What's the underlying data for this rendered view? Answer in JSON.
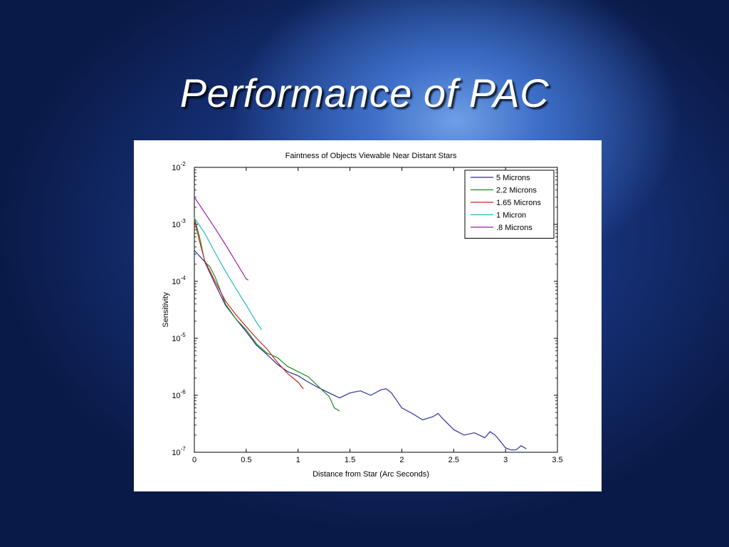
{
  "slide": {
    "title": "Performance of PAC"
  },
  "chart_data": {
    "type": "line",
    "title": "Faintness of Objects Viewable Near Distant Stars",
    "xlabel": "Distance from Star (Arc Seconds)",
    "ylabel": "Sensitivity",
    "xlim": [
      0,
      3.5
    ],
    "ylim_exp": [
      -7,
      -2
    ],
    "yscale": "log",
    "xticks": [
      "0",
      "0.5",
      "1",
      "1.5",
      "2",
      "2.5",
      "3",
      "3.5"
    ],
    "ytick_base": "10",
    "yticks_exp": [
      "-7",
      "-6",
      "-5",
      "-4",
      "-3",
      "-2"
    ],
    "grid": false,
    "legend_position": "top-right",
    "series": [
      {
        "name": "5 Microns",
        "color": "#2b2f9c",
        "points": [
          [
            0,
            0.00035
          ],
          [
            0.1,
            0.00022
          ],
          [
            0.2,
            9e-05
          ],
          [
            0.3,
            3.8e-05
          ],
          [
            0.4,
            2.2e-05
          ],
          [
            0.5,
            1.3e-05
          ],
          [
            0.6,
            7.5e-06
          ],
          [
            0.7,
            5.2e-06
          ],
          [
            0.8,
            3.5e-06
          ],
          [
            0.9,
            2.6e-06
          ],
          [
            1.0,
            2.2e-06
          ],
          [
            1.1,
            1.7e-06
          ],
          [
            1.2,
            1.35e-06
          ],
          [
            1.3,
            1.1e-06
          ],
          [
            1.4,
            9e-07
          ],
          [
            1.5,
            1.1e-06
          ],
          [
            1.6,
            1.2e-06
          ],
          [
            1.7,
            1e-06
          ],
          [
            1.8,
            1.25e-06
          ],
          [
            1.85,
            1.3e-06
          ],
          [
            1.9,
            1.1e-06
          ],
          [
            2.0,
            6e-07
          ],
          [
            2.1,
            4.8e-07
          ],
          [
            2.2,
            3.7e-07
          ],
          [
            2.3,
            4.2e-07
          ],
          [
            2.35,
            4.8e-07
          ],
          [
            2.4,
            3.8e-07
          ],
          [
            2.5,
            2.5e-07
          ],
          [
            2.6,
            2e-07
          ],
          [
            2.7,
            2.2e-07
          ],
          [
            2.8,
            1.8e-07
          ],
          [
            2.85,
            2.3e-07
          ],
          [
            2.9,
            2e-07
          ],
          [
            3.0,
            1.2e-07
          ],
          [
            3.05,
            1.1e-07
          ],
          [
            3.1,
            1.1e-07
          ],
          [
            3.15,
            1.3e-07
          ],
          [
            3.2,
            1.15e-07
          ]
        ]
      },
      {
        "name": "2.2 Microns",
        "color": "#1f8a1f",
        "points": [
          [
            0,
            0.0013
          ],
          [
            0.05,
            0.0006
          ],
          [
            0.1,
            0.00022
          ],
          [
            0.15,
            0.00018
          ],
          [
            0.2,
            0.00012
          ],
          [
            0.3,
            4e-05
          ],
          [
            0.4,
            2.2e-05
          ],
          [
            0.5,
            1.4e-05
          ],
          [
            0.6,
            8e-06
          ],
          [
            0.7,
            5.5e-06
          ],
          [
            0.8,
            4.6e-06
          ],
          [
            0.9,
            3.2e-06
          ],
          [
            1.0,
            2.6e-06
          ],
          [
            1.1,
            2.1e-06
          ],
          [
            1.2,
            1.4e-06
          ],
          [
            1.3,
            9.5e-07
          ],
          [
            1.35,
            6e-07
          ],
          [
            1.4,
            5.3e-07
          ]
        ]
      },
      {
        "name": "1.65 Microns",
        "color": "#c8281e",
        "points": [
          [
            0,
            0.0012
          ],
          [
            0.05,
            0.0005
          ],
          [
            0.1,
            0.00023
          ],
          [
            0.2,
            0.0001
          ],
          [
            0.3,
            4.5e-05
          ],
          [
            0.4,
            2.6e-05
          ],
          [
            0.5,
            1.6e-05
          ],
          [
            0.6,
            1e-05
          ],
          [
            0.7,
            6.5e-06
          ],
          [
            0.8,
            3.8e-06
          ],
          [
            0.9,
            2.4e-06
          ],
          [
            1.0,
            1.7e-06
          ],
          [
            1.05,
            1.3e-06
          ]
        ]
      },
      {
        "name": "1 Micron",
        "color": "#22b8c2",
        "points": [
          [
            0,
            0.0013
          ],
          [
            0.1,
            0.0007
          ],
          [
            0.2,
            0.00032
          ],
          [
            0.3,
            0.00015
          ],
          [
            0.4,
            7.5e-05
          ],
          [
            0.5,
            3.8e-05
          ],
          [
            0.6,
            1.9e-05
          ],
          [
            0.65,
            1.4e-05
          ]
        ]
      },
      {
        "name": ".8 Microns",
        "color": "#9a1fb0",
        "points": [
          [
            0,
            0.003
          ],
          [
            0.1,
            0.0016
          ],
          [
            0.2,
            0.00085
          ],
          [
            0.3,
            0.00044
          ],
          [
            0.4,
            0.00022
          ],
          [
            0.5,
            0.00011
          ],
          [
            0.52,
            0.000105
          ]
        ]
      }
    ]
  }
}
